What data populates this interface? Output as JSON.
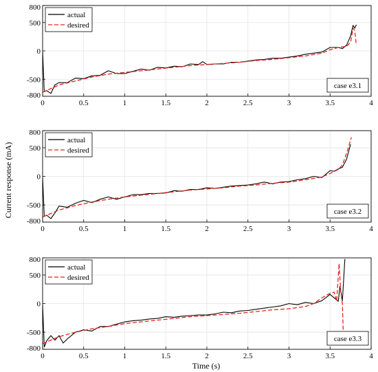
{
  "figure": {
    "ylabel": "Current response (mA)",
    "xlabel": "Time (s)"
  },
  "chart_data": [
    {
      "type": "line",
      "case_label": "case e3.1",
      "xlim": [
        0,
        4
      ],
      "ylim": [
        -800,
        800
      ],
      "xticks": [
        "0",
        "0.5",
        "1",
        "1.5",
        "2",
        "2.5",
        "3",
        "3.5",
        "4"
      ],
      "yticks": [
        "-800",
        "-500",
        "0",
        "500",
        "800"
      ],
      "grid": true,
      "legend": "top-left",
      "series": [
        {
          "name": "actual",
          "color": "#000000",
          "style": "solid",
          "x": [
            0,
            0.02,
            0.05,
            0.1,
            0.15,
            0.2,
            0.3,
            0.4,
            0.5,
            0.6,
            0.7,
            0.8,
            0.9,
            1.0,
            1.1,
            1.2,
            1.3,
            1.4,
            1.5,
            1.6,
            1.7,
            1.8,
            1.9,
            1.95,
            2.0,
            2.1,
            2.2,
            2.3,
            2.4,
            2.5,
            2.6,
            2.7,
            2.8,
            2.9,
            3.0,
            3.1,
            3.2,
            3.3,
            3.4,
            3.5,
            3.6,
            3.65,
            3.7,
            3.75,
            3.78,
            3.8,
            3.82
          ],
          "y": [
            -10,
            -720,
            -700,
            -750,
            -600,
            -560,
            -560,
            -480,
            -490,
            -440,
            -430,
            -350,
            -400,
            -400,
            -360,
            -320,
            -340,
            -290,
            -300,
            -270,
            -280,
            -230,
            -240,
            -190,
            -240,
            -230,
            -230,
            -200,
            -200,
            -180,
            -160,
            -150,
            -130,
            -130,
            -110,
            -90,
            -60,
            -40,
            -20,
            60,
            60,
            40,
            100,
            260,
            450,
            400,
            460
          ]
        },
        {
          "name": "desired",
          "color": "#e8201c",
          "style": "dashed",
          "x": [
            0,
            0.2,
            0.4,
            0.6,
            0.8,
            1.0,
            1.2,
            1.4,
            1.6,
            1.8,
            2.0,
            2.2,
            2.4,
            2.6,
            2.8,
            3.0,
            3.2,
            3.4,
            3.5,
            3.6,
            3.7,
            3.75,
            3.78,
            3.8,
            3.82
          ],
          "y": [
            -730,
            -600,
            -530,
            -460,
            -410,
            -380,
            -350,
            -320,
            -290,
            -260,
            -240,
            -220,
            -200,
            -170,
            -150,
            -120,
            -90,
            -40,
            20,
            60,
            80,
            150,
            400,
            360,
            100
          ]
        }
      ]
    },
    {
      "type": "line",
      "case_label": "case e3.2",
      "xlim": [
        0,
        4
      ],
      "ylim": [
        -800,
        800
      ],
      "xticks": [
        "0",
        "0.5",
        "1",
        "1.5",
        "2",
        "2.5",
        "3",
        "3.5",
        "4"
      ],
      "yticks": [
        "-800",
        "-500",
        "0",
        "500",
        "800"
      ],
      "grid": true,
      "legend": "top-left",
      "series": [
        {
          "name": "actual",
          "color": "#000000",
          "style": "solid",
          "x": [
            0,
            0.02,
            0.05,
            0.1,
            0.15,
            0.2,
            0.3,
            0.4,
            0.5,
            0.6,
            0.7,
            0.8,
            0.9,
            1.0,
            1.1,
            1.2,
            1.3,
            1.4,
            1.5,
            1.6,
            1.7,
            1.8,
            1.9,
            2.0,
            2.1,
            2.2,
            2.3,
            2.4,
            2.5,
            2.6,
            2.7,
            2.8,
            2.9,
            3.0,
            3.1,
            3.2,
            3.3,
            3.4,
            3.5,
            3.55,
            3.6,
            3.65,
            3.7,
            3.75
          ],
          "y": [
            -20,
            -700,
            -680,
            -740,
            -640,
            -520,
            -540,
            -470,
            -420,
            -460,
            -400,
            -360,
            -400,
            -360,
            -320,
            -320,
            -300,
            -300,
            -290,
            -250,
            -260,
            -230,
            -230,
            -200,
            -210,
            -190,
            -170,
            -160,
            -150,
            -130,
            -100,
            -130,
            -100,
            -90,
            -60,
            -40,
            0,
            -20,
            100,
            90,
            130,
            160,
            300,
            560
          ]
        },
        {
          "name": "desired",
          "color": "#e8201c",
          "style": "dashed",
          "x": [
            0,
            0.2,
            0.4,
            0.6,
            0.8,
            1.0,
            1.2,
            1.4,
            1.6,
            1.8,
            2.0,
            2.2,
            2.4,
            2.6,
            2.8,
            3.0,
            3.2,
            3.4,
            3.5,
            3.6,
            3.65,
            3.7,
            3.76
          ],
          "y": [
            -710,
            -590,
            -510,
            -450,
            -400,
            -360,
            -330,
            -300,
            -270,
            -240,
            -220,
            -200,
            -170,
            -150,
            -120,
            -100,
            -60,
            -10,
            50,
            120,
            200,
            400,
            680
          ]
        }
      ]
    },
    {
      "type": "line",
      "case_label": "case e3.3",
      "xlim": [
        0,
        4
      ],
      "ylim": [
        -800,
        800
      ],
      "xticks": [
        "0",
        "0.5",
        "1",
        "1.5",
        "2",
        "2.5",
        "3",
        "3.5",
        "4"
      ],
      "yticks": [
        "-800",
        "-500",
        "0",
        "500",
        "800"
      ],
      "grid": true,
      "legend": "top-left",
      "series": [
        {
          "name": "actual",
          "color": "#000000",
          "style": "solid",
          "x": [
            0,
            0.02,
            0.05,
            0.1,
            0.15,
            0.2,
            0.25,
            0.3,
            0.4,
            0.5,
            0.6,
            0.7,
            0.8,
            0.9,
            1.0,
            1.1,
            1.2,
            1.3,
            1.4,
            1.5,
            1.6,
            1.7,
            1.8,
            1.9,
            2.0,
            2.1,
            2.2,
            2.3,
            2.4,
            2.5,
            2.6,
            2.7,
            2.8,
            2.9,
            3.0,
            3.1,
            3.2,
            3.3,
            3.4,
            3.5,
            3.55,
            3.6,
            3.62,
            3.65,
            3.68
          ],
          "y": [
            -20,
            -760,
            -650,
            -560,
            -640,
            -560,
            -690,
            -620,
            -500,
            -460,
            -480,
            -400,
            -400,
            -360,
            -320,
            -300,
            -290,
            -270,
            -260,
            -230,
            -240,
            -220,
            -210,
            -200,
            -200,
            -180,
            -150,
            -160,
            -130,
            -120,
            -100,
            -80,
            -60,
            -40,
            0,
            -20,
            20,
            0,
            50,
            160,
            100,
            40,
            300,
            50,
            780
          ]
        },
        {
          "name": "desired",
          "color": "#e8201c",
          "style": "dashed",
          "x": [
            0,
            0.2,
            0.4,
            0.6,
            0.8,
            1.0,
            1.2,
            1.4,
            1.6,
            1.8,
            2.0,
            2.2,
            2.4,
            2.6,
            2.8,
            3.0,
            3.2,
            3.3,
            3.4,
            3.5,
            3.55,
            3.58,
            3.61,
            3.63,
            3.65,
            3.66
          ],
          "y": [
            -700,
            -580,
            -500,
            -440,
            -400,
            -350,
            -320,
            -290,
            -260,
            -230,
            -210,
            -190,
            -170,
            -140,
            -110,
            -90,
            -50,
            0,
            100,
            180,
            200,
            40,
            700,
            200,
            0,
            -500
          ]
        }
      ]
    }
  ]
}
